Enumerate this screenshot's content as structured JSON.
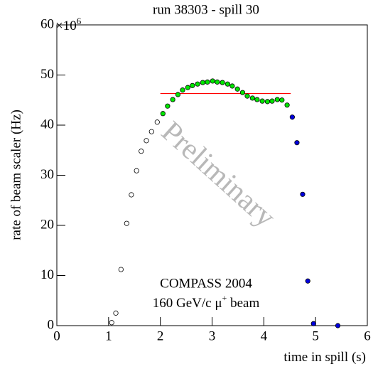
{
  "chart_data": {
    "type": "scatter",
    "title": "run 38303 - spill 30",
    "x_label": "time in spill (s)",
    "y_label": "rate of beam scaler (Hz)",
    "y_multiplier": {
      "base": "×10",
      "exponent": "6"
    },
    "annotations": [
      "COMPASS 2004",
      {
        "before": "160 GeV/c  μ",
        "sup": "+",
        "after": " beam"
      }
    ],
    "watermark": "Preliminary",
    "xlim": [
      0,
      6
    ],
    "xticks": [
      0,
      1,
      2,
      3,
      4,
      5,
      6
    ],
    "ylim": [
      0,
      60
    ],
    "yticks": [
      0,
      10,
      20,
      30,
      40,
      50,
      60
    ],
    "series": [
      {
        "color": "#000000",
        "marker": "open",
        "x": [
          1.06,
          1.14,
          1.24,
          1.35,
          1.44,
          1.54,
          1.63,
          1.73,
          1.83,
          1.94
        ],
        "values": [
          0.6,
          2.5,
          11.2,
          20.4,
          26.1,
          30.9,
          34.8,
          36.9,
          38.7,
          40.6
        ]
      },
      {
        "color": "#00e600",
        "marker": "filled",
        "x": [
          2.05,
          2.14,
          2.24,
          2.34,
          2.43,
          2.53,
          2.62,
          2.72,
          2.82,
          2.91,
          3.01,
          3.1,
          3.2,
          3.3,
          3.39,
          3.49,
          3.59,
          3.68,
          3.78,
          3.87,
          3.97,
          4.07,
          4.16,
          4.26,
          4.35,
          4.45
        ],
        "values": [
          42.3,
          43.8,
          45.1,
          46.1,
          47.0,
          47.5,
          47.9,
          48.2,
          48.5,
          48.6,
          48.8,
          48.6,
          48.5,
          48.2,
          47.8,
          47.2,
          46.5,
          45.8,
          45.4,
          45.1,
          44.8,
          44.7,
          44.8,
          45.1,
          45.0,
          44.0
        ]
      },
      {
        "color": "#0000dd",
        "marker": "filled",
        "x": [
          4.55,
          4.64,
          4.75,
          4.85,
          4.96,
          5.43
        ],
        "values": [
          41.6,
          36.5,
          26.2,
          8.9,
          0.4,
          0.0
        ]
      }
    ],
    "lines": [
      {
        "color": "#ff0000",
        "x": [
          2.0,
          4.52
        ],
        "values": [
          46.3,
          46.3
        ]
      }
    ]
  }
}
